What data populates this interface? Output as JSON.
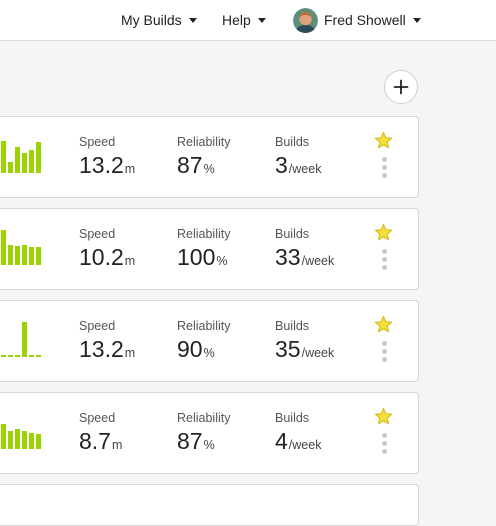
{
  "nav": {
    "my_builds": "My Builds",
    "help": "Help",
    "user_name": "Fred Showell"
  },
  "colors": {
    "bar_green": "#9ad300",
    "star_yellow": "#f5df3a",
    "star_outline": "#d7bb16"
  },
  "icons": {
    "add": "plus-icon",
    "star": "star-icon",
    "more": "kebab-menu-icon",
    "dropdown": "caret-down-icon"
  },
  "builds": [
    {
      "speed_label": "Speed",
      "speed_value": "13.2",
      "speed_unit": "m",
      "reliability_label": "Reliability",
      "reliability_value": "87",
      "reliability_unit": "%",
      "builds_label": "Builds",
      "builds_value": "3",
      "builds_unit": "/week",
      "history": [
        0.8,
        0.28,
        0.65,
        0.5,
        0.58,
        0.78
      ]
    },
    {
      "speed_label": "Speed",
      "speed_value": "10.2",
      "speed_unit": "m",
      "reliability_label": "Reliability",
      "reliability_value": "100",
      "reliability_unit": "%",
      "builds_label": "Builds",
      "builds_value": "33",
      "builds_unit": "/week",
      "history": [
        0.88,
        0.5,
        0.48,
        0.5,
        0.46,
        0.46
      ]
    },
    {
      "speed_label": "Speed",
      "speed_value": "13.2",
      "speed_unit": "m",
      "reliability_label": "Reliability",
      "reliability_value": "90",
      "reliability_unit": "%",
      "builds_label": "Builds",
      "builds_value": "35",
      "builds_unit": "/week",
      "history": [
        0.06,
        0.06,
        0.06,
        0.88,
        0.06,
        0.06
      ]
    },
    {
      "speed_label": "Speed",
      "speed_value": "8.7",
      "speed_unit": "m",
      "reliability_label": "Reliability",
      "reliability_value": "87",
      "reliability_unit": "%",
      "builds_label": "Builds",
      "builds_value": "4",
      "builds_unit": "/week",
      "history": [
        0.62,
        0.45,
        0.5,
        0.45,
        0.4,
        0.38
      ]
    }
  ]
}
